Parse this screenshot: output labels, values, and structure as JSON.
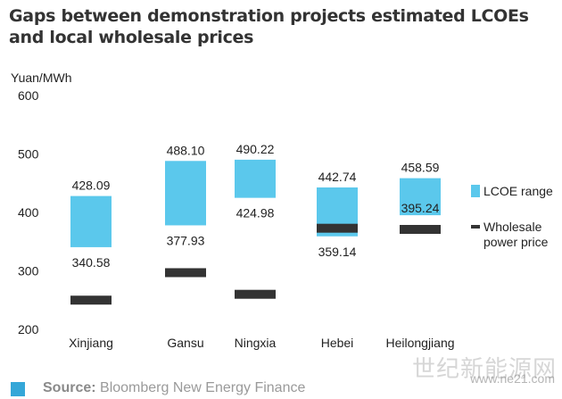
{
  "title": "Gaps between demonstration projects estimated LCOEs and local wholesale prices",
  "source_label": "Source:",
  "source_text": "Bloomberg New Energy Finance",
  "watermark": "世纪新能源网",
  "watermark_sub": "www.ne21.com",
  "colors": {
    "lcoe": "#5bc8ec",
    "wholesale": "#333333",
    "accent": "#35a7d8"
  },
  "chart_data": {
    "type": "bar",
    "title": "Gaps between demonstration projects estimated LCOEs and local wholesale prices",
    "ylabel": "Yuan/MWh",
    "ylim": [
      200,
      600
    ],
    "yticks": [
      "200",
      "300",
      "400",
      "500",
      "600"
    ],
    "grid": false,
    "legend_position": "right",
    "categories": [
      "Xinjiang",
      "Gansu",
      "Ningxia",
      "Hebei",
      "Heilongjiang"
    ],
    "series": [
      {
        "name": "LCOE range",
        "type": "range",
        "low": [
          340.58,
          377.93,
          424.98,
          359.14,
          395.24
        ],
        "high": [
          428.09,
          488.1,
          490.22,
          442.74,
          458.59
        ],
        "low_labels": [
          "340.58",
          "377.93",
          "424.98",
          "359.14",
          "395.24"
        ],
        "high_labels": [
          "428.09",
          "488.10",
          "490.22",
          "442.74",
          "458.59"
        ]
      },
      {
        "name": "Wholesale power price",
        "legend_lines": [
          "Wholesale",
          "power price"
        ],
        "type": "marker",
        "values": [
          250,
          297,
          260,
          373,
          371
        ]
      }
    ]
  }
}
